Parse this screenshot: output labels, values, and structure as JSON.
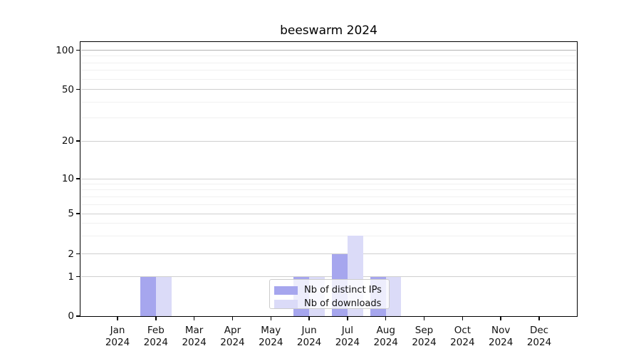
{
  "chart_data": {
    "type": "bar",
    "title": "beeswarm 2024",
    "categories": [
      "Jan",
      "Feb",
      "Mar",
      "Apr",
      "May",
      "Jun",
      "Jul",
      "Aug",
      "Sep",
      "Oct",
      "Nov",
      "Dec"
    ],
    "category_year": "2024",
    "series": [
      {
        "name": "Nb of distinct IPs",
        "color": "#a6a6ee",
        "values": [
          0,
          1,
          0,
          0,
          0,
          1,
          2,
          1,
          0,
          0,
          0,
          0
        ]
      },
      {
        "name": "Nb of downloads",
        "color": "#dbdbf8",
        "values": [
          0,
          1,
          0,
          0,
          0,
          1,
          3,
          1,
          0,
          0,
          0,
          0
        ]
      }
    ],
    "xlabel": "",
    "ylabel": "",
    "yscale": "symlog-like",
    "ylim": [
      0,
      115
    ],
    "y_major_ticks": [
      0,
      1,
      2,
      5,
      10,
      20,
      50,
      100
    ],
    "y_minor_gridlines": [
      3,
      4,
      6,
      7,
      8,
      9,
      30,
      40,
      60,
      70,
      80,
      90
    ],
    "grid": true,
    "legend_position": "lower center",
    "colors": {
      "spine": "#000000",
      "grid_major": "#cfcfcf",
      "grid_minor": "#f0f0f0",
      "grid_top_major": "#b3b3b3",
      "background": "#ffffff"
    }
  }
}
